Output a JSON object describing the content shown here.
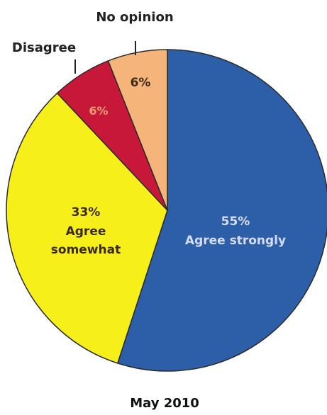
{
  "chart_data": {
    "type": "pie",
    "title": "May 2010",
    "slices": [
      {
        "label": "Agree strongly",
        "value": 55,
        "display": "55%",
        "color": "#2c5fa8"
      },
      {
        "label": "Agree somewhat",
        "value": 33,
        "display": "33%",
        "color": "#f6ef1a"
      },
      {
        "label": "Disagree",
        "value": 6,
        "display": "6%",
        "color": "#c8183a"
      },
      {
        "label": "No opinion",
        "value": 6,
        "display": "6%",
        "color": "#f5b47a"
      }
    ],
    "text_colors": {
      "agree_strongly": "#d6dcff",
      "agree_somewhat": "#3a2a10",
      "disagree": "#f0a070",
      "no_opinion": "#3a2a10",
      "callout": "#222222"
    }
  }
}
